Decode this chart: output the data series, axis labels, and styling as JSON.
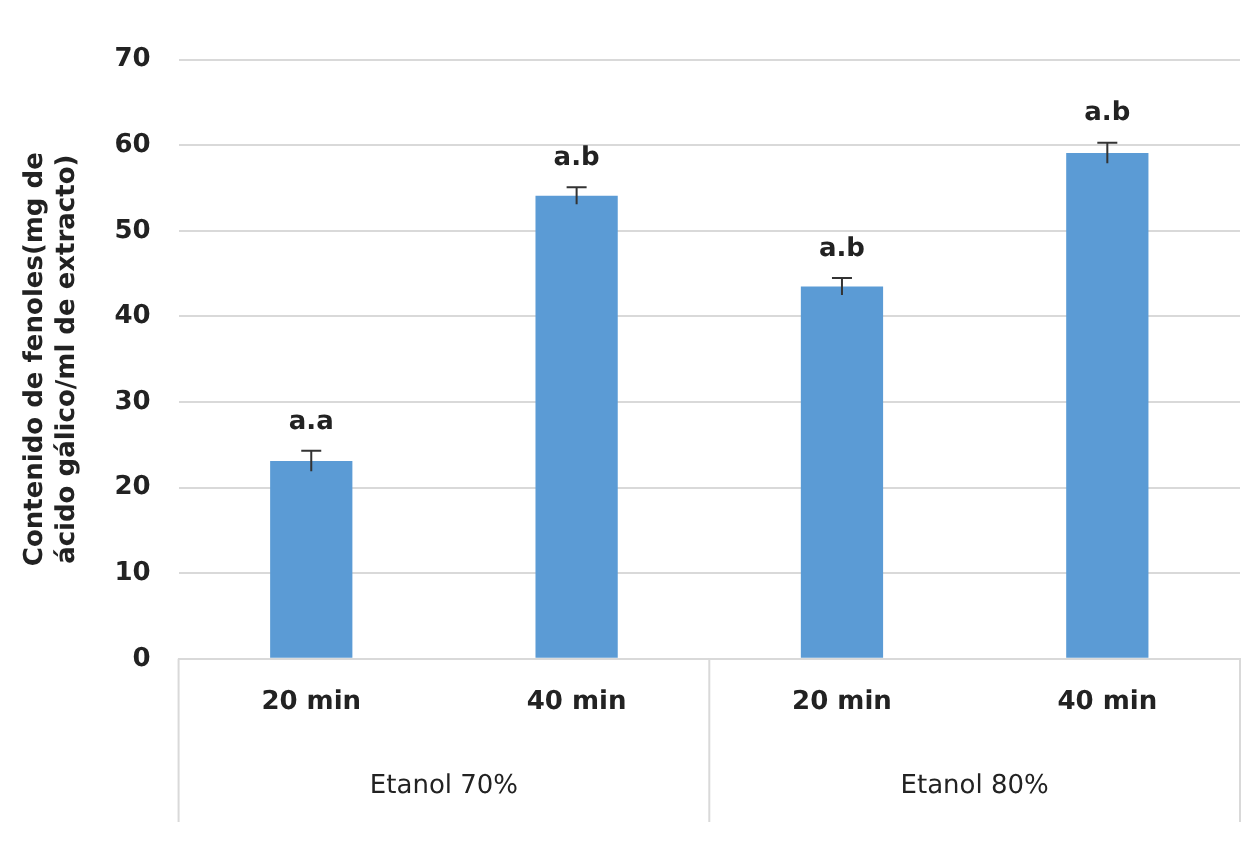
{
  "chart_data": {
    "type": "bar",
    "ylabel": "Contenido de fenoles(mg de ácido gálico/ml de extracto)",
    "categories": [
      "20 min",
      "40 min",
      "20 min",
      "40 min"
    ],
    "values": [
      23.1,
      54.1,
      43.5,
      59.1
    ],
    "errors": [
      1.2,
      1,
      1,
      1.2
    ],
    "value_labels": [
      "a.a",
      "a.b",
      "a.b",
      "a.b"
    ],
    "color": "#5b9bd5",
    "ylim": [
      0,
      70
    ],
    "yticks": [
      0,
      10,
      20,
      30,
      40,
      50,
      60,
      70
    ],
    "grid": "y",
    "annotations": [
      "Etanol 70%",
      "Etanol 80%"
    ]
  }
}
